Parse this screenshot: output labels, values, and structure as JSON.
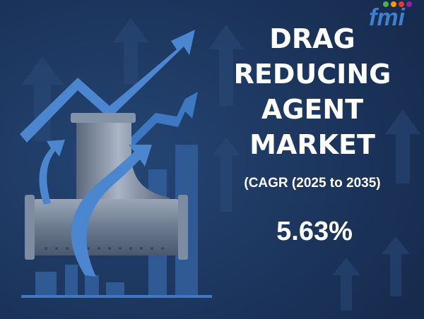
{
  "logo": "fmi",
  "title_lines": [
    "DRAG",
    "REDUCING",
    "AGENT",
    "MARKET"
  ],
  "subtitle": "(CAGR (2025 to 2035)",
  "value": "5.63%"
}
